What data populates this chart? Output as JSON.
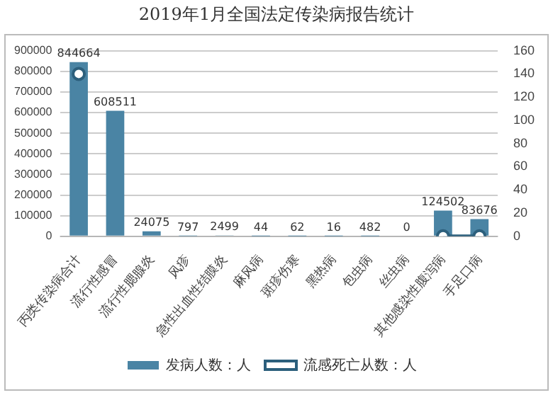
{
  "chart_data": {
    "type": "bar",
    "title": "2019年1月全国法定传染病报告统计",
    "categories": [
      "丙类传染病合计",
      "流行性感冒",
      "流行性腮腺炎",
      "风疹",
      "急性出血性结膜炎",
      "麻风病",
      "斑疹伤寒",
      "黑热病",
      "包虫病",
      "丝虫病",
      "其他感染性腹泻病",
      "手足口病"
    ],
    "series": [
      {
        "name": "发病人数：人",
        "color": "#4a84a4",
        "values": [
          844664,
          608511,
          24075,
          797,
          2499,
          44,
          62,
          16,
          482,
          0,
          124502,
          83676
        ],
        "value_labels": [
          "844664",
          "608511",
          "24075",
          "797",
          "2499",
          "44",
          "62",
          "16",
          "482",
          "0",
          "124502",
          "83676"
        ]
      },
      {
        "name": "流感死亡从数：人",
        "type": "line",
        "axis": "y2",
        "color": "#2c5f7c",
        "marker": "circle",
        "values": [
          140,
          null,
          null,
          null,
          null,
          null,
          null,
          null,
          null,
          null,
          0,
          0
        ]
      }
    ],
    "ylim": [
      0,
      900000
    ],
    "yticks": [
      0,
      100000,
      200000,
      300000,
      400000,
      500000,
      600000,
      700000,
      800000,
      900000
    ],
    "y2lim": [
      0,
      160
    ],
    "y2ticks": [
      0,
      20,
      40,
      60,
      80,
      100,
      120,
      140,
      160
    ],
    "grid": "y",
    "legend": "bottom"
  }
}
